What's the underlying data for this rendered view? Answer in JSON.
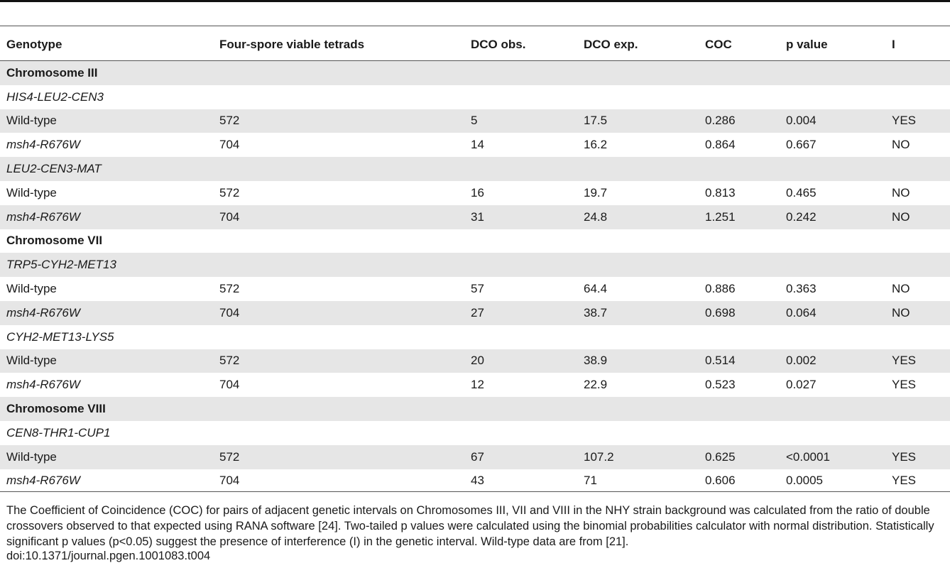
{
  "table": {
    "headers": [
      "Genotype",
      "Four-spore viable tetrads",
      "DCO obs.",
      "DCO exp.",
      "COC",
      "p value",
      "I"
    ],
    "sections": [
      {
        "chromosome": "Chromosome III",
        "intervals": [
          {
            "name": "HIS4-LEU2-CEN3",
            "rows": [
              [
                "Wild-type",
                "572",
                "5",
                "17.5",
                "0.286",
                "0.004",
                "YES"
              ],
              [
                "msh4-R676W",
                "704",
                "14",
                "16.2",
                "0.864",
                "0.667",
                "NO"
              ]
            ]
          },
          {
            "name": "LEU2-CEN3-MAT",
            "rows": [
              [
                "Wild-type",
                "572",
                "16",
                "19.7",
                "0.813",
                "0.465",
                "NO"
              ],
              [
                "msh4-R676W",
                "704",
                "31",
                "24.8",
                "1.251",
                "0.242",
                "NO"
              ]
            ]
          }
        ]
      },
      {
        "chromosome": "Chromosome VII",
        "intervals": [
          {
            "name": "TRP5-CYH2-MET13",
            "rows": [
              [
                "Wild-type",
                "572",
                "57",
                "64.4",
                "0.886",
                "0.363",
                "NO"
              ],
              [
                "msh4-R676W",
                "704",
                "27",
                "38.7",
                "0.698",
                "0.064",
                "NO"
              ]
            ]
          },
          {
            "name": "CYH2-MET13-LYS5",
            "rows": [
              [
                "Wild-type",
                "572",
                "20",
                "38.9",
                "0.514",
                "0.002",
                "YES"
              ],
              [
                "msh4-R676W",
                "704",
                "12",
                "22.9",
                "0.523",
                "0.027",
                "YES"
              ]
            ]
          }
        ]
      },
      {
        "chromosome": "Chromosome VIII",
        "intervals": [
          {
            "name": "CEN8-THR1-CUP1",
            "rows": [
              [
                "Wild-type",
                "572",
                "67",
                "107.2",
                "0.625",
                "<0.0001",
                "YES"
              ],
              [
                "msh4-R676W",
                "704",
                "43",
                "71",
                "0.606",
                "0.0005",
                "YES"
              ]
            ]
          }
        ]
      }
    ]
  },
  "footnote": "The Coefficient of Coincidence (COC) for pairs of adjacent genetic intervals on Chromosomes III, VII and VIII in the NHY strain background was calculated from the ratio of double crossovers observed to that expected using RANA software [24]. Two-tailed p values were calculated using the binomial probabilities calculator with normal distribution. Statistically significant p values (p<0.05) suggest the presence of interference (I) in the genetic interval. Wild-type data are from [21].",
  "doi": "doi:10.1371/journal.pgen.1001083.t004"
}
